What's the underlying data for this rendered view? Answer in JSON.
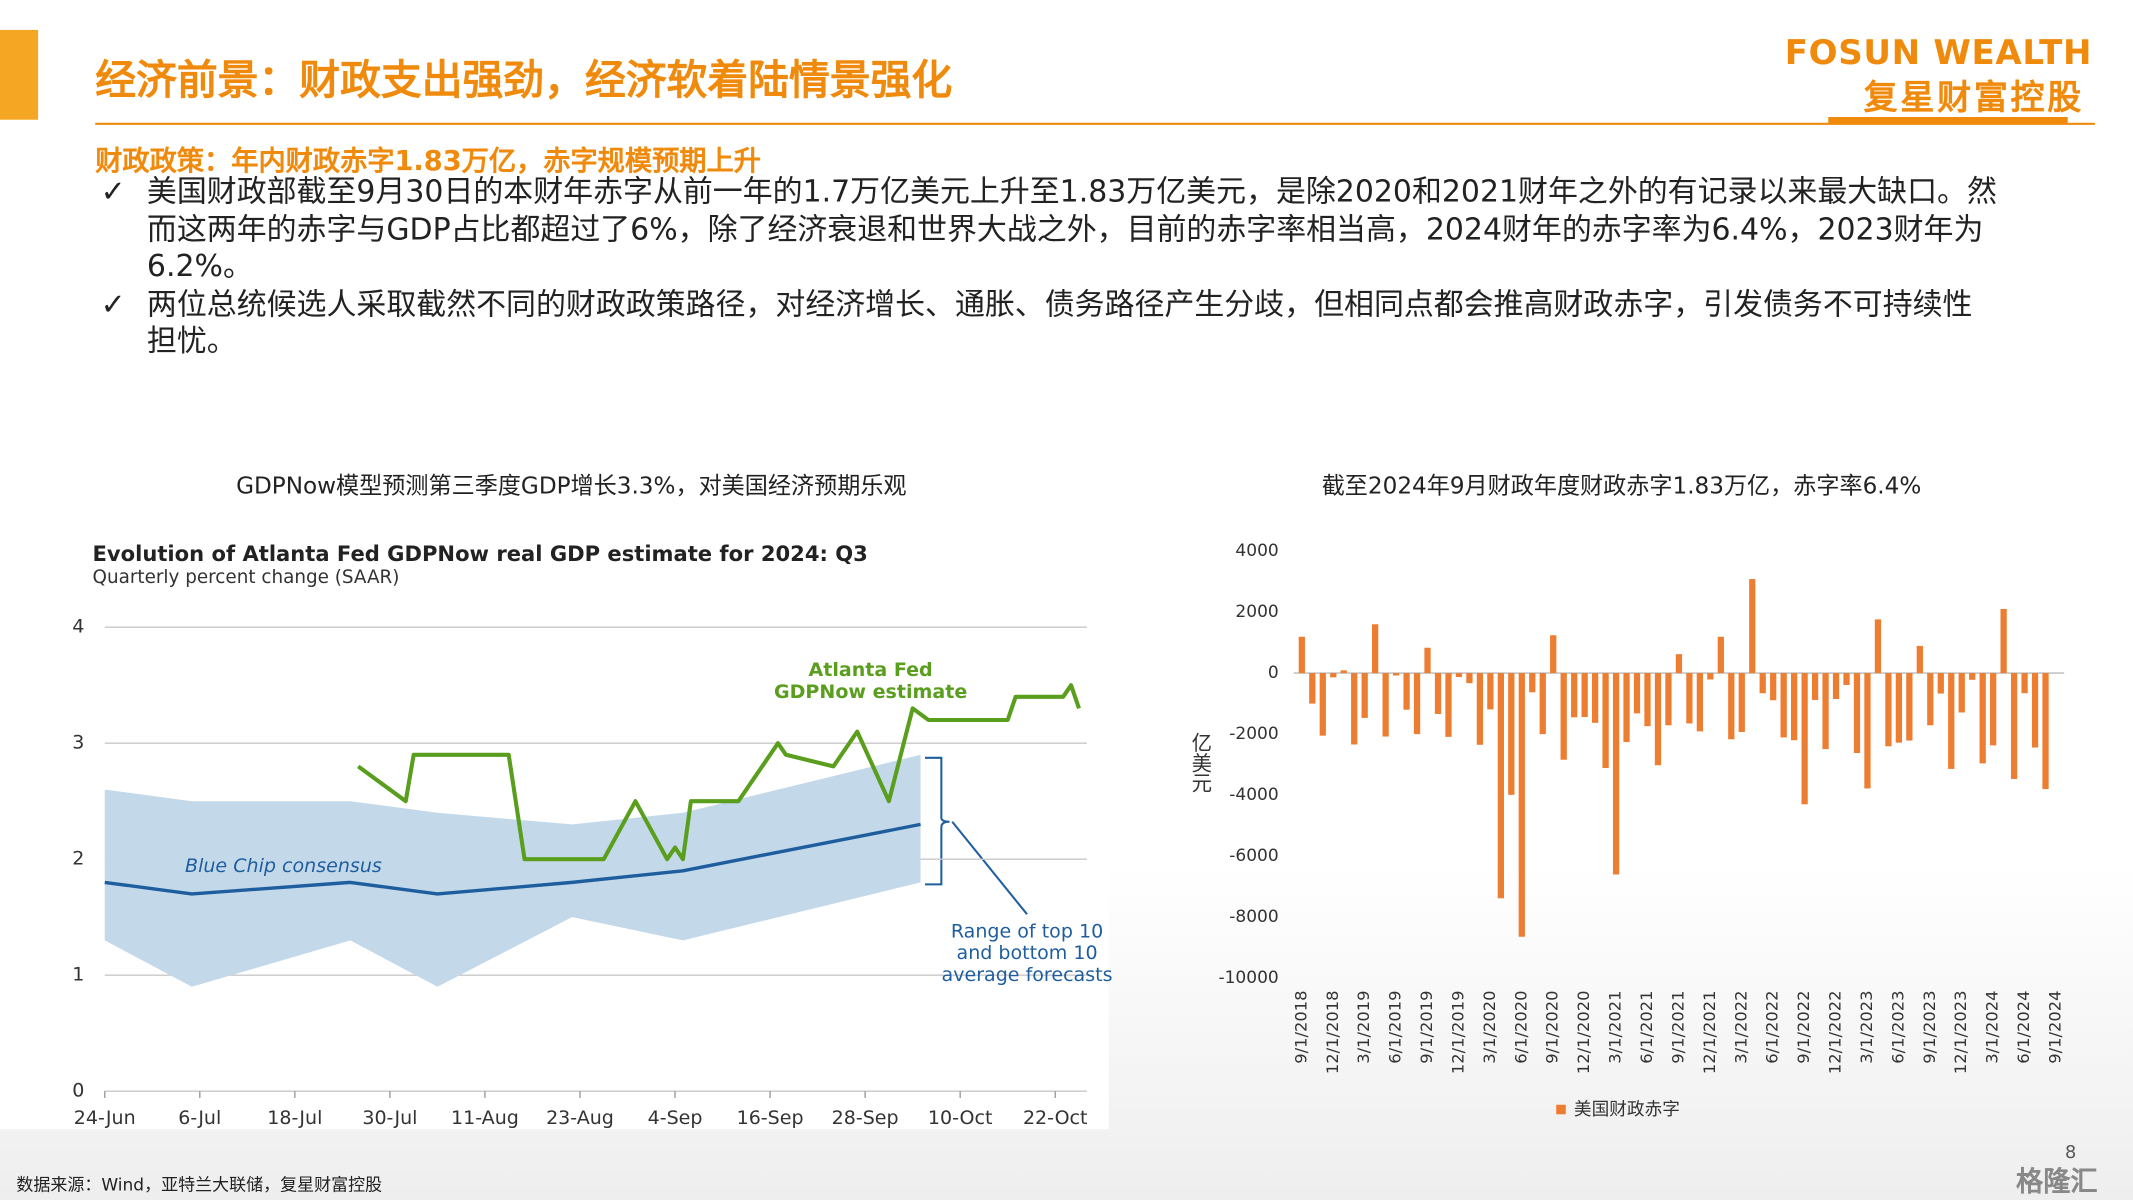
{
  "header": {
    "title": "经济前景：财政支出强劲，经济软着陆情景强化",
    "logo_en": "FOSUN WEALTH",
    "logo_cn": "复星财富控股"
  },
  "section": {
    "heading": "财政政策：年内财政赤字1.83万亿，赤字规模预期上升",
    "bullets": [
      "美国财政部截至9月30日的本财年赤字从前一年的1.7万亿美元上升至1.83万亿美元，是除2020和2021财年之外的有记录以来最大缺口。然而这两年的赤字与GDP占比都超过了6%，除了经济衰退和世界大战之外，目前的赤字率相当高，2024财年的赤字率为6.4%，2023财年为6.2%。",
      "两位总统候选人采取截然不同的财政政策路径，对经济增长、通胀、债务路径产生分歧，但相同点都会推高财政赤字，引发债务不可持续性担忧。"
    ]
  },
  "chart_data": [
    {
      "type": "line",
      "caption": "GDPNow模型预测第三季度GDP增长3.3%，对美国经济预期乐观",
      "title": "Evolution of Atlanta Fed GDPNow real GDP estimate for 2024: Q3",
      "subtitle": "Quarterly percent change (SAAR)",
      "xlim": [
        0,
        124
      ],
      "xticks": [
        {
          "value": 0,
          "label": "24-Jun"
        },
        {
          "value": 12,
          "label": "6-Jul"
        },
        {
          "value": 24,
          "label": "18-Jul"
        },
        {
          "value": 36,
          "label": "30-Jul"
        },
        {
          "value": 48,
          "label": "11-Aug"
        },
        {
          "value": 60,
          "label": "23-Aug"
        },
        {
          "value": 72,
          "label": "4-Sep"
        },
        {
          "value": 84,
          "label": "16-Sep"
        },
        {
          "value": 96,
          "label": "28-Sep"
        },
        {
          "value": 108,
          "label": "10-Oct"
        },
        {
          "value": 120,
          "label": "22-Oct"
        }
      ],
      "ylim": [
        0,
        4
      ],
      "yticks": [
        0,
        1,
        2,
        3,
        4
      ],
      "grid": true,
      "band": {
        "name": "Range of top 10 and bottom 10 average forecasts",
        "color": "#c3d9ea",
        "x": [
          0,
          11,
          31,
          42,
          59,
          73,
          103
        ],
        "lower": [
          1.3,
          0.9,
          1.3,
          0.9,
          1.5,
          1.3,
          1.8
        ],
        "upper": [
          2.6,
          2.5,
          2.5,
          2.4,
          2.3,
          2.4,
          2.9
        ]
      },
      "series": [
        {
          "name": "Atlanta Fed GDPNow estimate",
          "color": "#5a9e1e",
          "x": [
            32,
            38,
            39,
            51,
            53,
            63,
            67,
            71,
            72,
            73,
            74,
            80,
            85,
            86,
            92,
            95,
            99,
            102,
            104,
            114,
            115,
            121,
            122,
            123
          ],
          "values": [
            2.8,
            2.5,
            2.9,
            2.9,
            2.0,
            2.0,
            2.5,
            2.0,
            2.1,
            2.0,
            2.5,
            2.5,
            3.0,
            2.9,
            2.8,
            3.1,
            2.5,
            3.3,
            3.2,
            3.2,
            3.4,
            3.4,
            3.5,
            3.3
          ]
        },
        {
          "name": "Blue Chip consensus",
          "color": "#1f5e9e",
          "x": [
            0,
            11,
            31,
            42,
            59,
            73,
            103
          ],
          "values": [
            1.8,
            1.7,
            1.8,
            1.7,
            1.8,
            1.9,
            2.3
          ]
        }
      ]
    },
    {
      "type": "bar",
      "caption": "截至2024年9月财政年度财政赤字1.83万亿，赤字率6.4%",
      "y_label": "亿美元",
      "ylim": [
        -10000,
        4000
      ],
      "yticks": [
        -10000,
        -8000,
        -6000,
        -4000,
        -2000,
        0,
        2000,
        4000
      ],
      "grid": false,
      "categories": [
        "9/1/2018",
        null,
        null,
        "12/1/2018",
        null,
        null,
        "3/1/2019",
        null,
        null,
        "6/1/2019",
        null,
        null,
        "9/1/2019",
        null,
        null,
        "12/1/2019",
        null,
        null,
        "3/1/2020",
        null,
        null,
        "6/1/2020",
        null,
        null,
        "9/1/2020",
        null,
        null,
        "12/1/2020",
        null,
        null,
        "3/1/2021",
        null,
        null,
        "6/1/2021",
        null,
        null,
        "9/1/2021",
        null,
        null,
        "12/1/2021",
        null,
        null,
        "3/1/2022",
        null,
        null,
        "6/1/2022",
        null,
        null,
        "9/1/2022",
        null,
        null,
        "12/1/2022",
        null,
        null,
        "3/1/2023",
        null,
        null,
        "6/1/2023",
        null,
        null,
        "9/1/2023",
        null,
        null,
        "12/1/2023",
        null,
        null,
        "3/1/2024",
        null,
        null,
        "6/1/2024",
        null,
        null,
        "9/1/2024"
      ],
      "series": [
        {
          "name": "美国财政赤字",
          "color": "#ed7d31",
          "values": [
            1190,
            -1000,
            -2050,
            -140,
            90,
            -2340,
            -1470,
            1600,
            -2080,
            -80,
            -1200,
            -2000,
            830,
            -1340,
            -2090,
            -130,
            -330,
            -2350,
            -1190,
            -7380,
            -3990,
            -8640,
            -630,
            -2000,
            1240,
            -2840,
            -1450,
            -1440,
            -1630,
            -3110,
            -6600,
            -2260,
            -1320,
            -1740,
            -3020,
            -1710,
            620,
            -1650,
            -1910,
            -210,
            1190,
            -2170,
            -1930,
            3080,
            -660,
            -890,
            -2110,
            -2200,
            -4300,
            -880,
            -2490,
            -850,
            -390,
            -2620,
            -3780,
            1760,
            -2400,
            -2280,
            -2210,
            890,
            -1710,
            -670,
            -3140,
            -1290,
            -220,
            -2960,
            -2370,
            2100,
            -3470,
            -660,
            -2440,
            -3800,
            null
          ]
        }
      ]
    }
  ],
  "source": "数据来源：Wind，亚特兰大联储，复星财富控股",
  "page_number": 8,
  "watermark": "格隆汇"
}
